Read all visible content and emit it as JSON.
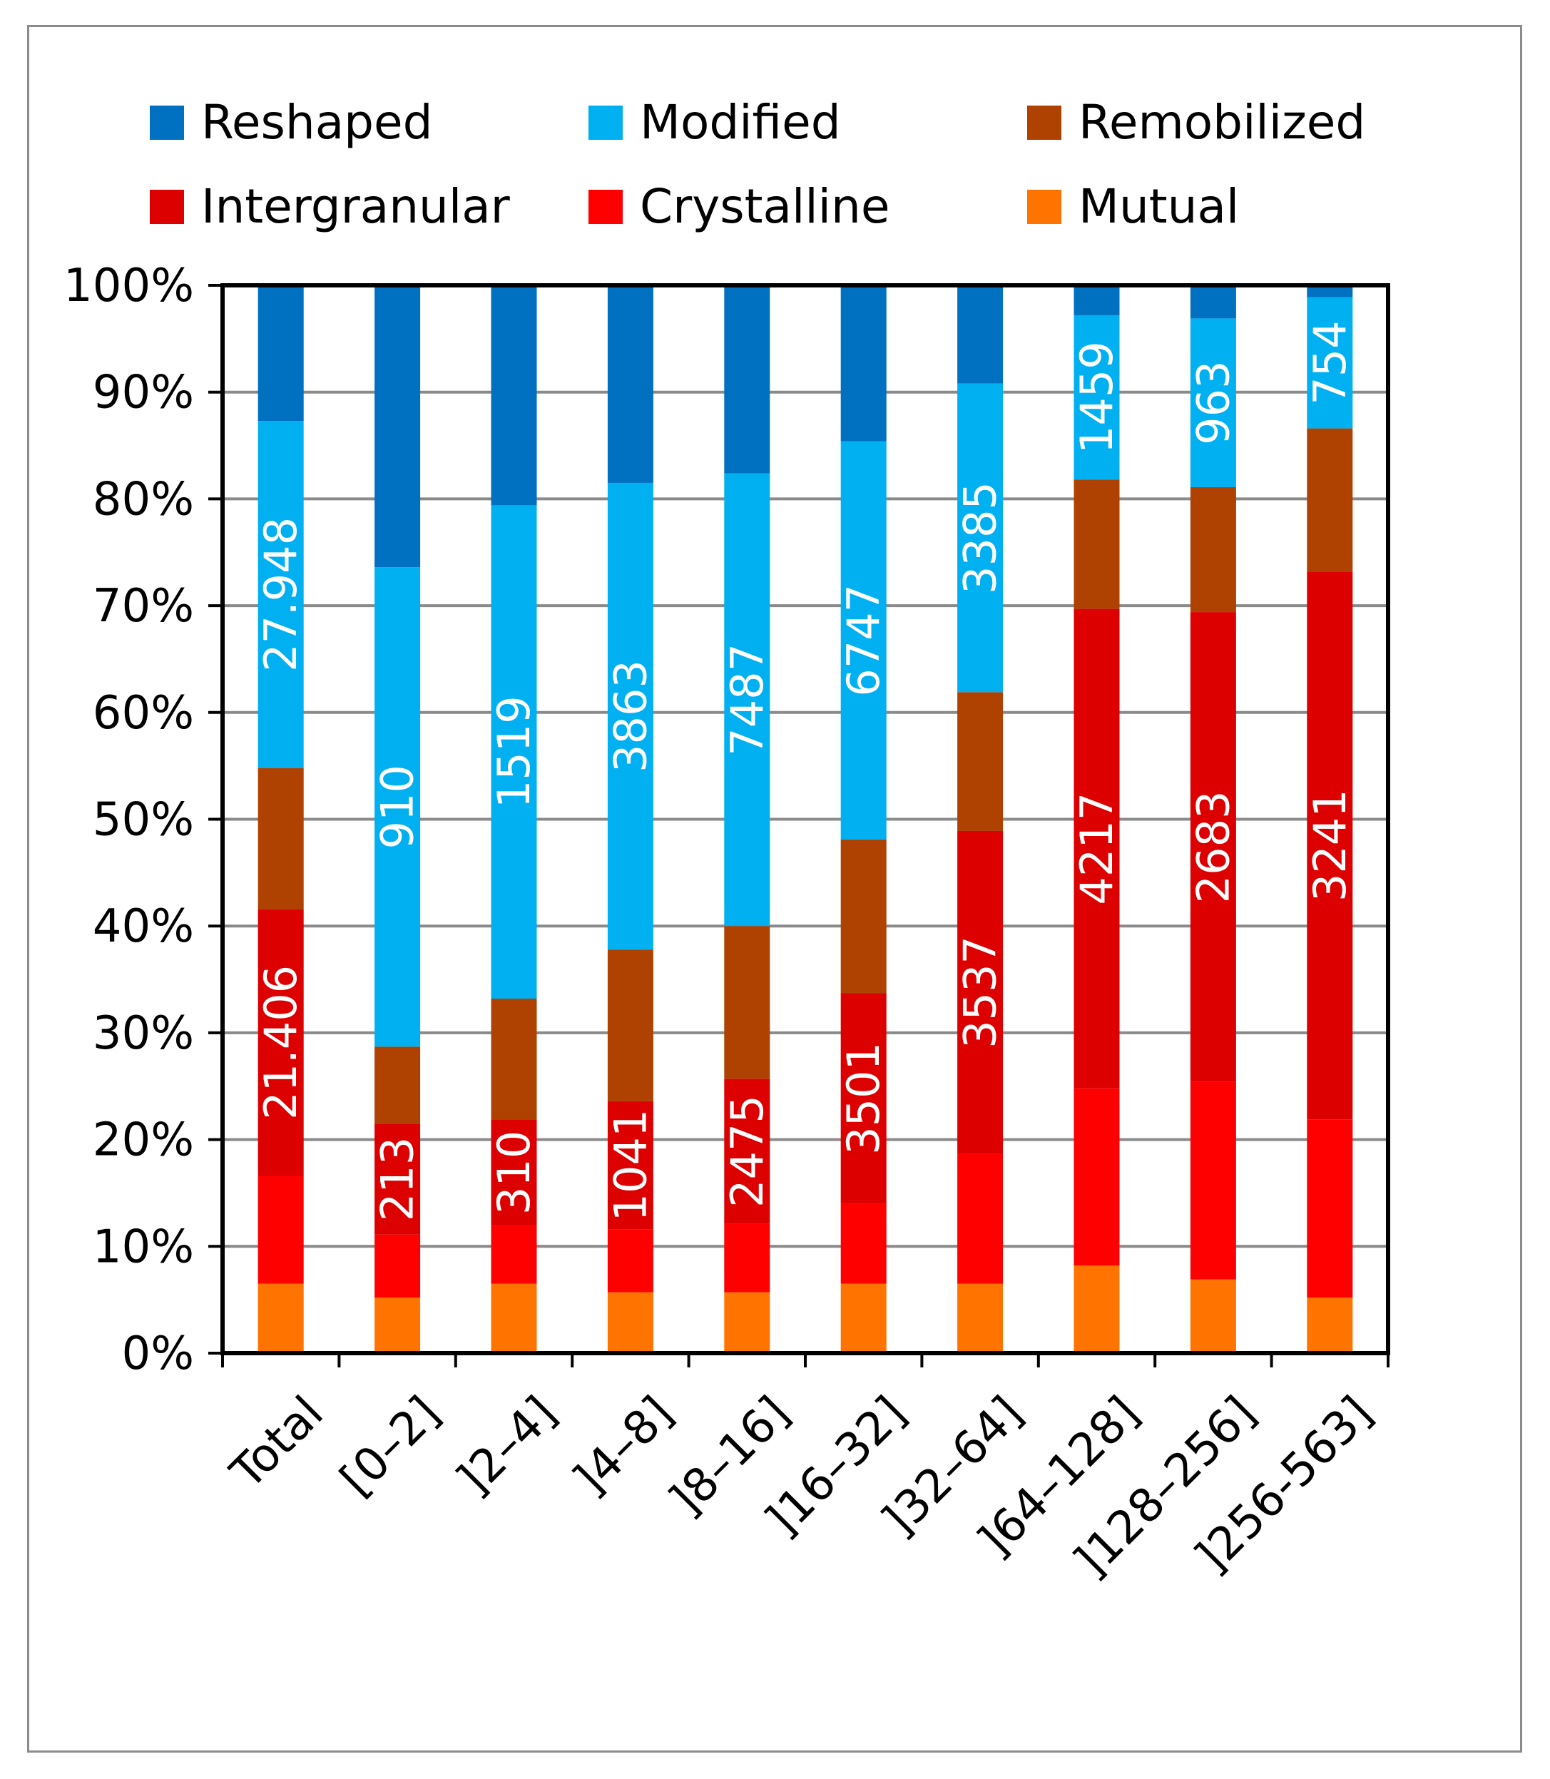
{
  "chart_data": {
    "type": "bar",
    "stacked": true,
    "normalized": true,
    "categories": [
      "Total",
      "[0–2]",
      "]2–4]",
      "]4–8]",
      "]8–16]",
      "]16–32]",
      "]32–64]",
      "]64–128]",
      "]128–256]",
      "]256-563]"
    ],
    "series": [
      {
        "name": "Mutual",
        "color": "#FF7300",
        "values": [
          6.5,
          5.2,
          6.5,
          5.7,
          5.7,
          6.5,
          6.5,
          8.2,
          6.9,
          5.2
        ],
        "labels": [
          "",
          "",
          "",
          "",
          "",
          "",
          "",
          "",
          "",
          ""
        ]
      },
      {
        "name": "Crystalline",
        "color": "#FF0000",
        "values": [
          10.1,
          5.9,
          5.4,
          5.9,
          6.4,
          7.5,
          12.2,
          16.6,
          18.5,
          16.7
        ],
        "labels": [
          "",
          "",
          "",
          "",
          "",
          "",
          "",
          "",
          "",
          ""
        ]
      },
      {
        "name": "Intergranular",
        "color": "#DD0000",
        "values": [
          25.0,
          10.4,
          10.0,
          12.0,
          13.6,
          19.7,
          30.2,
          44.9,
          44.0,
          51.3
        ],
        "labels": [
          "21.406",
          "213",
          "310",
          "1041",
          "2475",
          "3501",
          "3537",
          "4217",
          "2683",
          "3241"
        ]
      },
      {
        "name": "Remobilized",
        "color": "#AF4200",
        "values": [
          13.2,
          7.2,
          11.3,
          14.2,
          14.3,
          14.4,
          13.0,
          12.1,
          11.7,
          13.4
        ],
        "labels": [
          "",
          "",
          "",
          "",
          "",
          "",
          "",
          "",
          "",
          ""
        ]
      },
      {
        "name": "Modified",
        "color": "#00B0F0",
        "values": [
          32.5,
          44.9,
          46.2,
          43.7,
          42.4,
          37.3,
          28.9,
          15.4,
          15.8,
          12.3
        ],
        "labels": [
          "27.948",
          "910",
          "1519",
          "3863",
          "7487",
          "6747",
          "3385",
          "1459",
          "963",
          "754"
        ]
      },
      {
        "name": "Reshaped",
        "color": "#0070C0",
        "values": [
          12.7,
          26.4,
          20.6,
          18.5,
          17.6,
          14.6,
          9.2,
          2.8,
          3.1,
          1.1
        ],
        "labels": [
          "",
          "",
          "",
          "",
          "",
          "",
          "",
          "",
          "",
          ""
        ]
      }
    ],
    "legend": {
      "position": "top",
      "order": [
        "Reshaped",
        "Modified",
        "Remobilized",
        "Intergranular",
        "Crystalline",
        "Mutual"
      ]
    },
    "ylim": [
      0,
      100
    ],
    "yticks": [
      "0%",
      "10%",
      "20%",
      "30%",
      "40%",
      "50%",
      "60%",
      "70%",
      "80%",
      "90%",
      "100%"
    ],
    "grid": true,
    "xlabel": "",
    "ylabel": ""
  }
}
